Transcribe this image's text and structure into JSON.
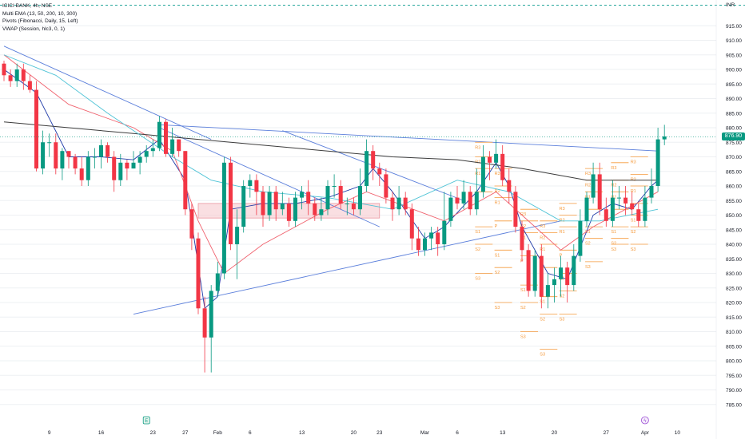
{
  "colors": {
    "up": "#089981",
    "down": "#f23645",
    "ema13": "#1e3aa8",
    "ema50": "#f0616d",
    "ema200": "#3c3c3c",
    "ema_cyan": "#4fc3d6",
    "trendline": "#5b7fdb",
    "pivot": "#f59a3c",
    "zone_fill": "#f7c9cf",
    "zone_stroke": "#e88a96",
    "grid": "#eef0f3",
    "text": "#131722",
    "dashed": "#26a69a"
  },
  "header": {
    "title": "ICICI BANK, 4h, NSE",
    "indicators": [
      "Multi EMA (13, 50, 200, 10, 300)",
      "Pivots (Fibonacci, Daily, 15, Left)",
      "VWAP (Session, hlc3, 0, 1)"
    ],
    "currency": "INR"
  },
  "chart_data": {
    "type": "candlestick",
    "title": "ICICI BANK, 4h, NSE",
    "y_axis": {
      "min": 780,
      "max": 920,
      "ticks": [
        915,
        910,
        905,
        900,
        895,
        890,
        885,
        880,
        875,
        870,
        865,
        860,
        855,
        850,
        845,
        840,
        835,
        830,
        825,
        820,
        815,
        810,
        805,
        800,
        795,
        790,
        785
      ],
      "tick_labels": [
        "915.00",
        "910.00",
        "905.00",
        "900.00",
        "895.00",
        "890.00",
        "885.00",
        "880.00",
        "875.00",
        "870.00",
        "865.00",
        "860.00",
        "855.00",
        "850.00",
        "845.00",
        "840.00",
        "835.00",
        "830.00",
        "825.00",
        "820.00",
        "815.00",
        "810.00",
        "805.00",
        "800.00",
        "795.00",
        "790.00",
        "785.00"
      ]
    },
    "x_axis": {
      "labels": [
        {
          "text": "9",
          "i": 7
        },
        {
          "text": "16",
          "i": 15
        },
        {
          "text": "23",
          "i": 23
        },
        {
          "text": "27",
          "i": 28
        },
        {
          "text": "Feb",
          "i": 33
        },
        {
          "text": "6",
          "i": 38
        },
        {
          "text": "13",
          "i": 46
        },
        {
          "text": "20",
          "i": 54
        },
        {
          "text": "23",
          "i": 58
        },
        {
          "text": "Mar",
          "i": 65
        },
        {
          "text": "6",
          "i": 70
        },
        {
          "text": "13",
          "i": 77
        },
        {
          "text": "20",
          "i": 85
        },
        {
          "text": "27",
          "i": 93
        },
        {
          "text": "Apr",
          "i": 99
        },
        {
          "text": "10",
          "i": 104
        }
      ]
    },
    "last_price": 876.9,
    "last_price_label": "876.90",
    "candles": [
      [
        902,
        898,
        903,
        896
      ],
      [
        898,
        896,
        900,
        894
      ],
      [
        896,
        900,
        902,
        894
      ],
      [
        900,
        896,
        902,
        893
      ],
      [
        896,
        893,
        898,
        892
      ],
      [
        893,
        866,
        896,
        865
      ],
      [
        866,
        875,
        879,
        864
      ],
      [
        875,
        875,
        878,
        870
      ],
      [
        875,
        866,
        878,
        864
      ],
      [
        866,
        872,
        873,
        862
      ],
      [
        872,
        870,
        872,
        866
      ],
      [
        870,
        866,
        871,
        864
      ],
      [
        866,
        862,
        870,
        860
      ],
      [
        862,
        870,
        872,
        860
      ],
      [
        870,
        870,
        873,
        866
      ],
      [
        870,
        874,
        876,
        866
      ],
      [
        874,
        870,
        875,
        868
      ],
      [
        870,
        862,
        872,
        858
      ],
      [
        862,
        868,
        871,
        860
      ],
      [
        868,
        866,
        869,
        862
      ],
      [
        866,
        868,
        872,
        866
      ],
      [
        868,
        870,
        872,
        864
      ],
      [
        870,
        872,
        874,
        868
      ],
      [
        872,
        873,
        876,
        870
      ],
      [
        873,
        882,
        884,
        872
      ],
      [
        882,
        871,
        883,
        870
      ],
      [
        871,
        876,
        880,
        870
      ],
      [
        876,
        872,
        876,
        870
      ],
      [
        872,
        852,
        872,
        850
      ],
      [
        852,
        842,
        854,
        838
      ],
      [
        842,
        818,
        844,
        816
      ],
      [
        818,
        808,
        822,
        796
      ],
      [
        808,
        824,
        826,
        796
      ],
      [
        824,
        830,
        834,
        822
      ],
      [
        830,
        868,
        870,
        828
      ],
      [
        868,
        840,
        870,
        838
      ],
      [
        840,
        846,
        852,
        828
      ],
      [
        846,
        860,
        862,
        844
      ],
      [
        860,
        862,
        864,
        856
      ],
      [
        862,
        858,
        864,
        850
      ],
      [
        858,
        850,
        860,
        846
      ],
      [
        850,
        858,
        860,
        848
      ],
      [
        858,
        852,
        860,
        848
      ],
      [
        852,
        854,
        858,
        850
      ],
      [
        854,
        848,
        856,
        846
      ],
      [
        848,
        856,
        858,
        846
      ],
      [
        856,
        858,
        860,
        852
      ],
      [
        858,
        854,
        862,
        850
      ],
      [
        854,
        850,
        856,
        848
      ],
      [
        850,
        852,
        856,
        848
      ],
      [
        852,
        860,
        862,
        850
      ],
      [
        860,
        860,
        864,
        856
      ],
      [
        860,
        854,
        862,
        852
      ],
      [
        854,
        854,
        856,
        850
      ],
      [
        854,
        852,
        856,
        850
      ],
      [
        852,
        860,
        866,
        850
      ],
      [
        860,
        872,
        876,
        858
      ],
      [
        872,
        866,
        874,
        862
      ],
      [
        866,
        864,
        868,
        860
      ],
      [
        864,
        856,
        866,
        854
      ],
      [
        856,
        852,
        858,
        848
      ],
      [
        852,
        856,
        860,
        850
      ],
      [
        856,
        852,
        858,
        850
      ],
      [
        852,
        842,
        854,
        838
      ],
      [
        842,
        838,
        846,
        836
      ],
      [
        838,
        842,
        844,
        836
      ],
      [
        842,
        844,
        846,
        838
      ],
      [
        844,
        840,
        846,
        836
      ],
      [
        840,
        848,
        858,
        838
      ],
      [
        848,
        856,
        858,
        846
      ],
      [
        856,
        854,
        860,
        852
      ],
      [
        854,
        858,
        862,
        852
      ],
      [
        858,
        852,
        860,
        850
      ],
      [
        852,
        858,
        866,
        850
      ],
      [
        858,
        870,
        874,
        856
      ],
      [
        870,
        868,
        872,
        862
      ],
      [
        868,
        871,
        876,
        866
      ],
      [
        871,
        862,
        874,
        860
      ],
      [
        862,
        858,
        866,
        854
      ],
      [
        858,
        846,
        860,
        844
      ],
      [
        846,
        838,
        848,
        834
      ],
      [
        838,
        824,
        840,
        822
      ],
      [
        824,
        836,
        838,
        822
      ],
      [
        836,
        822,
        840,
        818
      ],
      [
        822,
        826,
        830,
        818
      ],
      [
        826,
        828,
        832,
        820
      ],
      [
        828,
        832,
        836,
        822
      ],
      [
        832,
        826,
        834,
        820
      ],
      [
        826,
        836,
        840,
        824
      ],
      [
        836,
        848,
        852,
        834
      ],
      [
        848,
        856,
        858,
        846
      ],
      [
        856,
        864,
        868,
        854
      ],
      [
        864,
        852,
        868,
        850
      ],
      [
        852,
        848,
        856,
        846
      ],
      [
        848,
        856,
        862,
        846
      ],
      [
        856,
        856,
        860,
        852
      ],
      [
        856,
        854,
        860,
        850
      ],
      [
        854,
        852,
        858,
        850
      ],
      [
        852,
        848,
        854,
        846
      ],
      [
        848,
        856,
        860,
        846
      ],
      [
        856,
        860,
        866,
        854
      ],
      [
        860,
        876,
        880,
        858
      ],
      [
        876,
        877,
        881,
        874
      ]
    ],
    "ema_lines": {
      "ema13": [
        [
          0,
          900
        ],
        [
          5,
          892
        ],
        [
          10,
          870
        ],
        [
          15,
          870
        ],
        [
          20,
          869
        ],
        [
          24,
          876
        ],
        [
          28,
          862
        ],
        [
          31,
          818
        ],
        [
          33,
          822
        ],
        [
          35,
          852
        ],
        [
          40,
          854
        ],
        [
          45,
          854
        ],
        [
          50,
          856
        ],
        [
          55,
          860
        ],
        [
          57,
          866
        ],
        [
          60,
          858
        ],
        [
          65,
          842
        ],
        [
          68,
          846
        ],
        [
          73,
          858
        ],
        [
          76,
          868
        ],
        [
          78,
          860
        ],
        [
          80,
          846
        ],
        [
          84,
          830
        ],
        [
          87,
          828
        ],
        [
          91,
          850
        ],
        [
          94,
          854
        ],
        [
          97,
          852
        ],
        [
          100,
          860
        ],
        [
          101,
          862
        ]
      ],
      "ema50": [
        [
          0,
          905
        ],
        [
          10,
          888
        ],
        [
          20,
          880
        ],
        [
          26,
          872
        ],
        [
          30,
          848
        ],
        [
          34,
          830
        ],
        [
          40,
          840
        ],
        [
          50,
          852
        ],
        [
          56,
          858
        ],
        [
          62,
          853
        ],
        [
          68,
          848
        ],
        [
          76,
          858
        ],
        [
          80,
          850
        ],
        [
          86,
          838
        ],
        [
          91,
          846
        ],
        [
          96,
          852
        ],
        [
          101,
          858
        ]
      ],
      "ema200": [
        [
          0,
          882
        ],
        [
          10,
          880
        ],
        [
          20,
          878
        ],
        [
          30,
          876
        ],
        [
          40,
          874
        ],
        [
          50,
          872
        ],
        [
          60,
          870
        ],
        [
          70,
          869
        ],
        [
          80,
          866
        ],
        [
          90,
          862
        ],
        [
          101,
          862
        ]
      ],
      "ema_cyan": [
        [
          0,
          905
        ],
        [
          8,
          898
        ],
        [
          16,
          885
        ],
        [
          26,
          870
        ],
        [
          32,
          862
        ],
        [
          40,
          858
        ],
        [
          50,
          856
        ],
        [
          60,
          852
        ],
        [
          70,
          862
        ],
        [
          78,
          858
        ],
        [
          86,
          848
        ],
        [
          92,
          848
        ],
        [
          101,
          852
        ]
      ]
    },
    "trendlines": [
      [
        [
          0,
          908
        ],
        [
          32,
          876
        ]
      ],
      [
        [
          24,
          881
        ],
        [
          101,
          872
        ]
      ],
      [
        [
          20,
          816
        ],
        [
          86,
          848
        ]
      ],
      [
        [
          24,
          880
        ],
        [
          58,
          846
        ]
      ],
      [
        [
          43,
          879
        ],
        [
          71,
          855
        ]
      ]
    ],
    "zone": {
      "i0": 30,
      "i1": 58,
      "y0": 849,
      "y1": 854
    },
    "pivot_groups": [
      {
        "i": 73,
        "levels": [
          [
            "R3",
            875
          ],
          [
            "R2",
            870
          ],
          [
            "R1",
            866
          ],
          [
            "P",
            858
          ],
          [
            "S1",
            846
          ],
          [
            "S2",
            840
          ],
          [
            "S3",
            830
          ]
        ]
      },
      {
        "i": 76,
        "levels": [
          [
            "R3",
            866
          ],
          [
            "R2",
            860
          ],
          [
            "R1",
            856
          ],
          [
            "P",
            848
          ],
          [
            "S1",
            838
          ],
          [
            "S2",
            832
          ],
          [
            "S3",
            820
          ]
        ]
      },
      {
        "i": 80,
        "levels": [
          [
            "R3",
            852
          ],
          [
            "R2",
            848
          ],
          [
            "R1",
            844
          ],
          [
            "P",
            836
          ],
          [
            "S1",
            826
          ],
          [
            "S2",
            820
          ],
          [
            "S3",
            810
          ]
        ]
      },
      {
        "i": 83,
        "levels": [
          [
            "R3",
            848
          ],
          [
            "R2",
            844
          ],
          [
            "R1",
            840
          ],
          [
            "P",
            832
          ],
          [
            "S1",
            822
          ],
          [
            "S2",
            816
          ],
          [
            "S3",
            804
          ]
        ]
      },
      {
        "i": 86,
        "levels": [
          [
            "R3",
            854
          ],
          [
            "R2",
            850
          ],
          [
            "R1",
            846
          ],
          [
            "P",
            838
          ],
          [
            "S1",
            830
          ],
          [
            "S2",
            824
          ],
          [
            "S3",
            816
          ]
        ]
      },
      {
        "i": 90,
        "levels": [
          [
            "R3",
            866
          ],
          [
            "R2",
            862
          ],
          [
            "R1",
            858
          ],
          [
            "P",
            852
          ],
          [
            "S1",
            846
          ],
          [
            "S2",
            842
          ],
          [
            "S3",
            834
          ]
        ]
      },
      {
        "i": 94,
        "levels": [
          [
            "R3",
            868
          ],
          [
            "R2",
            862
          ],
          [
            "R1",
            858
          ],
          [
            "P",
            852
          ],
          [
            "S1",
            846
          ],
          [
            "S2",
            842
          ],
          [
            "S3",
            840
          ]
        ]
      },
      {
        "i": 97,
        "levels": [
          [
            "R3",
            870
          ],
          [
            "R2",
            864
          ],
          [
            "R1",
            860
          ],
          [
            "P",
            854
          ],
          [
            "S1",
            850
          ],
          [
            "S2",
            846
          ],
          [
            "S3",
            840
          ]
        ]
      }
    ],
    "markers": [
      {
        "i": 22,
        "label": "E"
      },
      {
        "i": 99,
        "label": "ϟ"
      }
    ]
  }
}
